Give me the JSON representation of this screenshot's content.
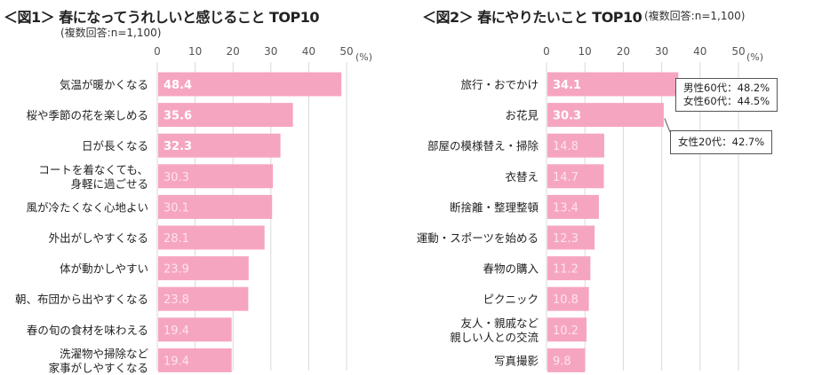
{
  "chart_data": [
    {
      "type": "bar",
      "orientation": "horizontal",
      "title": "＜図1＞ 春になってうれしいと感じること TOP10",
      "subtitle": "(複数回答:n=1,100)",
      "unit_label": "(%)",
      "xlim": [
        0,
        50
      ],
      "ticks": [
        "0",
        "10",
        "20",
        "30",
        "40",
        "50"
      ],
      "categories": [
        "気温が暖かくなる",
        "桜や季節の花を楽しめる",
        "日が長くなる",
        "コートを着なくても、\n身軽に過ごせる",
        "風が冷たくなく心地よい",
        "外出がしやすくなる",
        "体が動かしやすい",
        "朝、布団から出やすくなる",
        "春の旬の食材を味わえる",
        "洗濯物や掃除など\n家事がしやすくなる"
      ],
      "values": [
        48.4,
        35.6,
        32.3,
        30.3,
        30.1,
        28.1,
        23.9,
        23.8,
        19.4,
        19.4
      ],
      "value_labels": [
        "48.4",
        "35.6",
        "32.3",
        "30.3",
        "30.1",
        "28.1",
        "23.9",
        "23.8",
        "19.4",
        "19.4"
      ],
      "highlight_top": 3,
      "colors": {
        "bar": "#f6a5c0",
        "label_strong": "#ffffff",
        "label_weak": "#fde4ed"
      }
    },
    {
      "type": "bar",
      "orientation": "horizontal",
      "title": "＜図2＞ 春にやりたいこと TOP10",
      "subtitle": "(複数回答:n=1,100)",
      "unit_label": "(%)",
      "xlim": [
        0,
        50
      ],
      "ticks": [
        "0",
        "10",
        "20",
        "30",
        "40",
        "50"
      ],
      "categories": [
        "旅行・おでかけ",
        "お花見",
        "部屋の模様替え・掃除",
        "衣替え",
        "断捨離・整理整頓",
        "運動・スポーツを始める",
        "春物の購入",
        "ピクニック",
        "友人・親戚など\n親しい人との交流",
        "写真撮影"
      ],
      "values": [
        34.1,
        30.3,
        14.8,
        14.7,
        13.4,
        12.3,
        11.2,
        10.8,
        10.2,
        9.8
      ],
      "value_labels": [
        "34.1",
        "30.3",
        "14.8",
        "14.7",
        "13.4",
        "12.3",
        "11.2",
        "10.8",
        "10.2",
        "9.8"
      ],
      "highlight_top": 2,
      "colors": {
        "bar": "#f6a5c0",
        "label_strong": "#ffffff",
        "label_weak": "#fde4ed"
      },
      "annotations": [
        {
          "target_index": 0,
          "lines": [
            "男性60代：48.2%",
            "女性60代：44.5%"
          ]
        },
        {
          "target_index": 1,
          "lines": [
            "女性20代：42.7%"
          ]
        }
      ]
    }
  ]
}
